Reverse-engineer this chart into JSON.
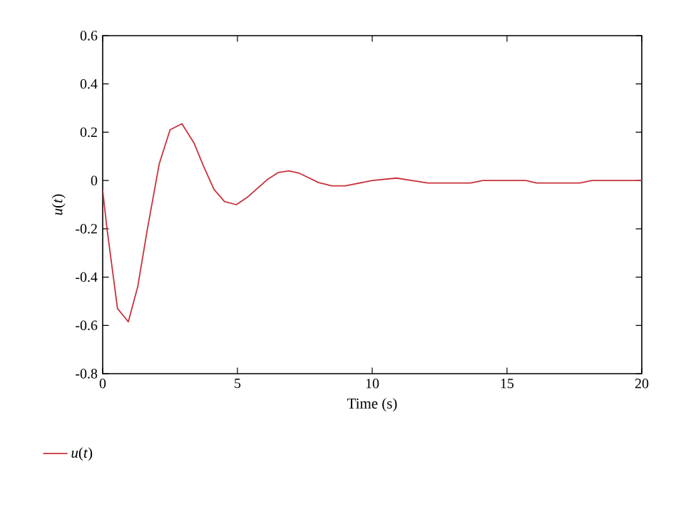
{
  "chart_data": {
    "type": "line",
    "xlabel": "Time (s)",
    "ylabel": "*u*(*t*)",
    "xlim": [
      0,
      20
    ],
    "ylim": [
      -0.8,
      0.6
    ],
    "xticks": [
      0,
      5,
      10,
      15,
      20
    ],
    "yticks": [
      -0.8,
      -0.6,
      -0.4,
      -0.2,
      0,
      0.2,
      0.4,
      0.6
    ],
    "grid": false,
    "legend": "bottom left",
    "series": [
      {
        "name": "*u*(*t*)",
        "color": "#c8323c",
        "x": [
          0,
          0.16,
          0.55,
          0.95,
          1.3,
          1.66,
          2.1,
          2.5,
          2.94,
          3.39,
          3.74,
          4.13,
          4.52,
          4.96,
          5.36,
          6.12,
          6.51,
          6.91,
          7.3,
          8.0,
          8.5,
          9.0,
          10.0,
          10.9,
          12.06,
          13.65,
          14.1,
          15.7,
          16.1,
          17.7,
          18.15,
          20
        ],
        "values": [
          -0.04,
          -0.2,
          -0.53,
          -0.585,
          -0.44,
          -0.2,
          0.07,
          0.21,
          0.235,
          0.155,
          0.06,
          -0.037,
          -0.087,
          -0.1,
          -0.07,
          0.005,
          0.033,
          0.04,
          0.03,
          -0.008,
          -0.022,
          -0.022,
          0,
          0.01,
          -0.01,
          -0.01,
          0,
          0,
          -0.01,
          -0.01,
          0,
          0
        ]
      }
    ]
  }
}
